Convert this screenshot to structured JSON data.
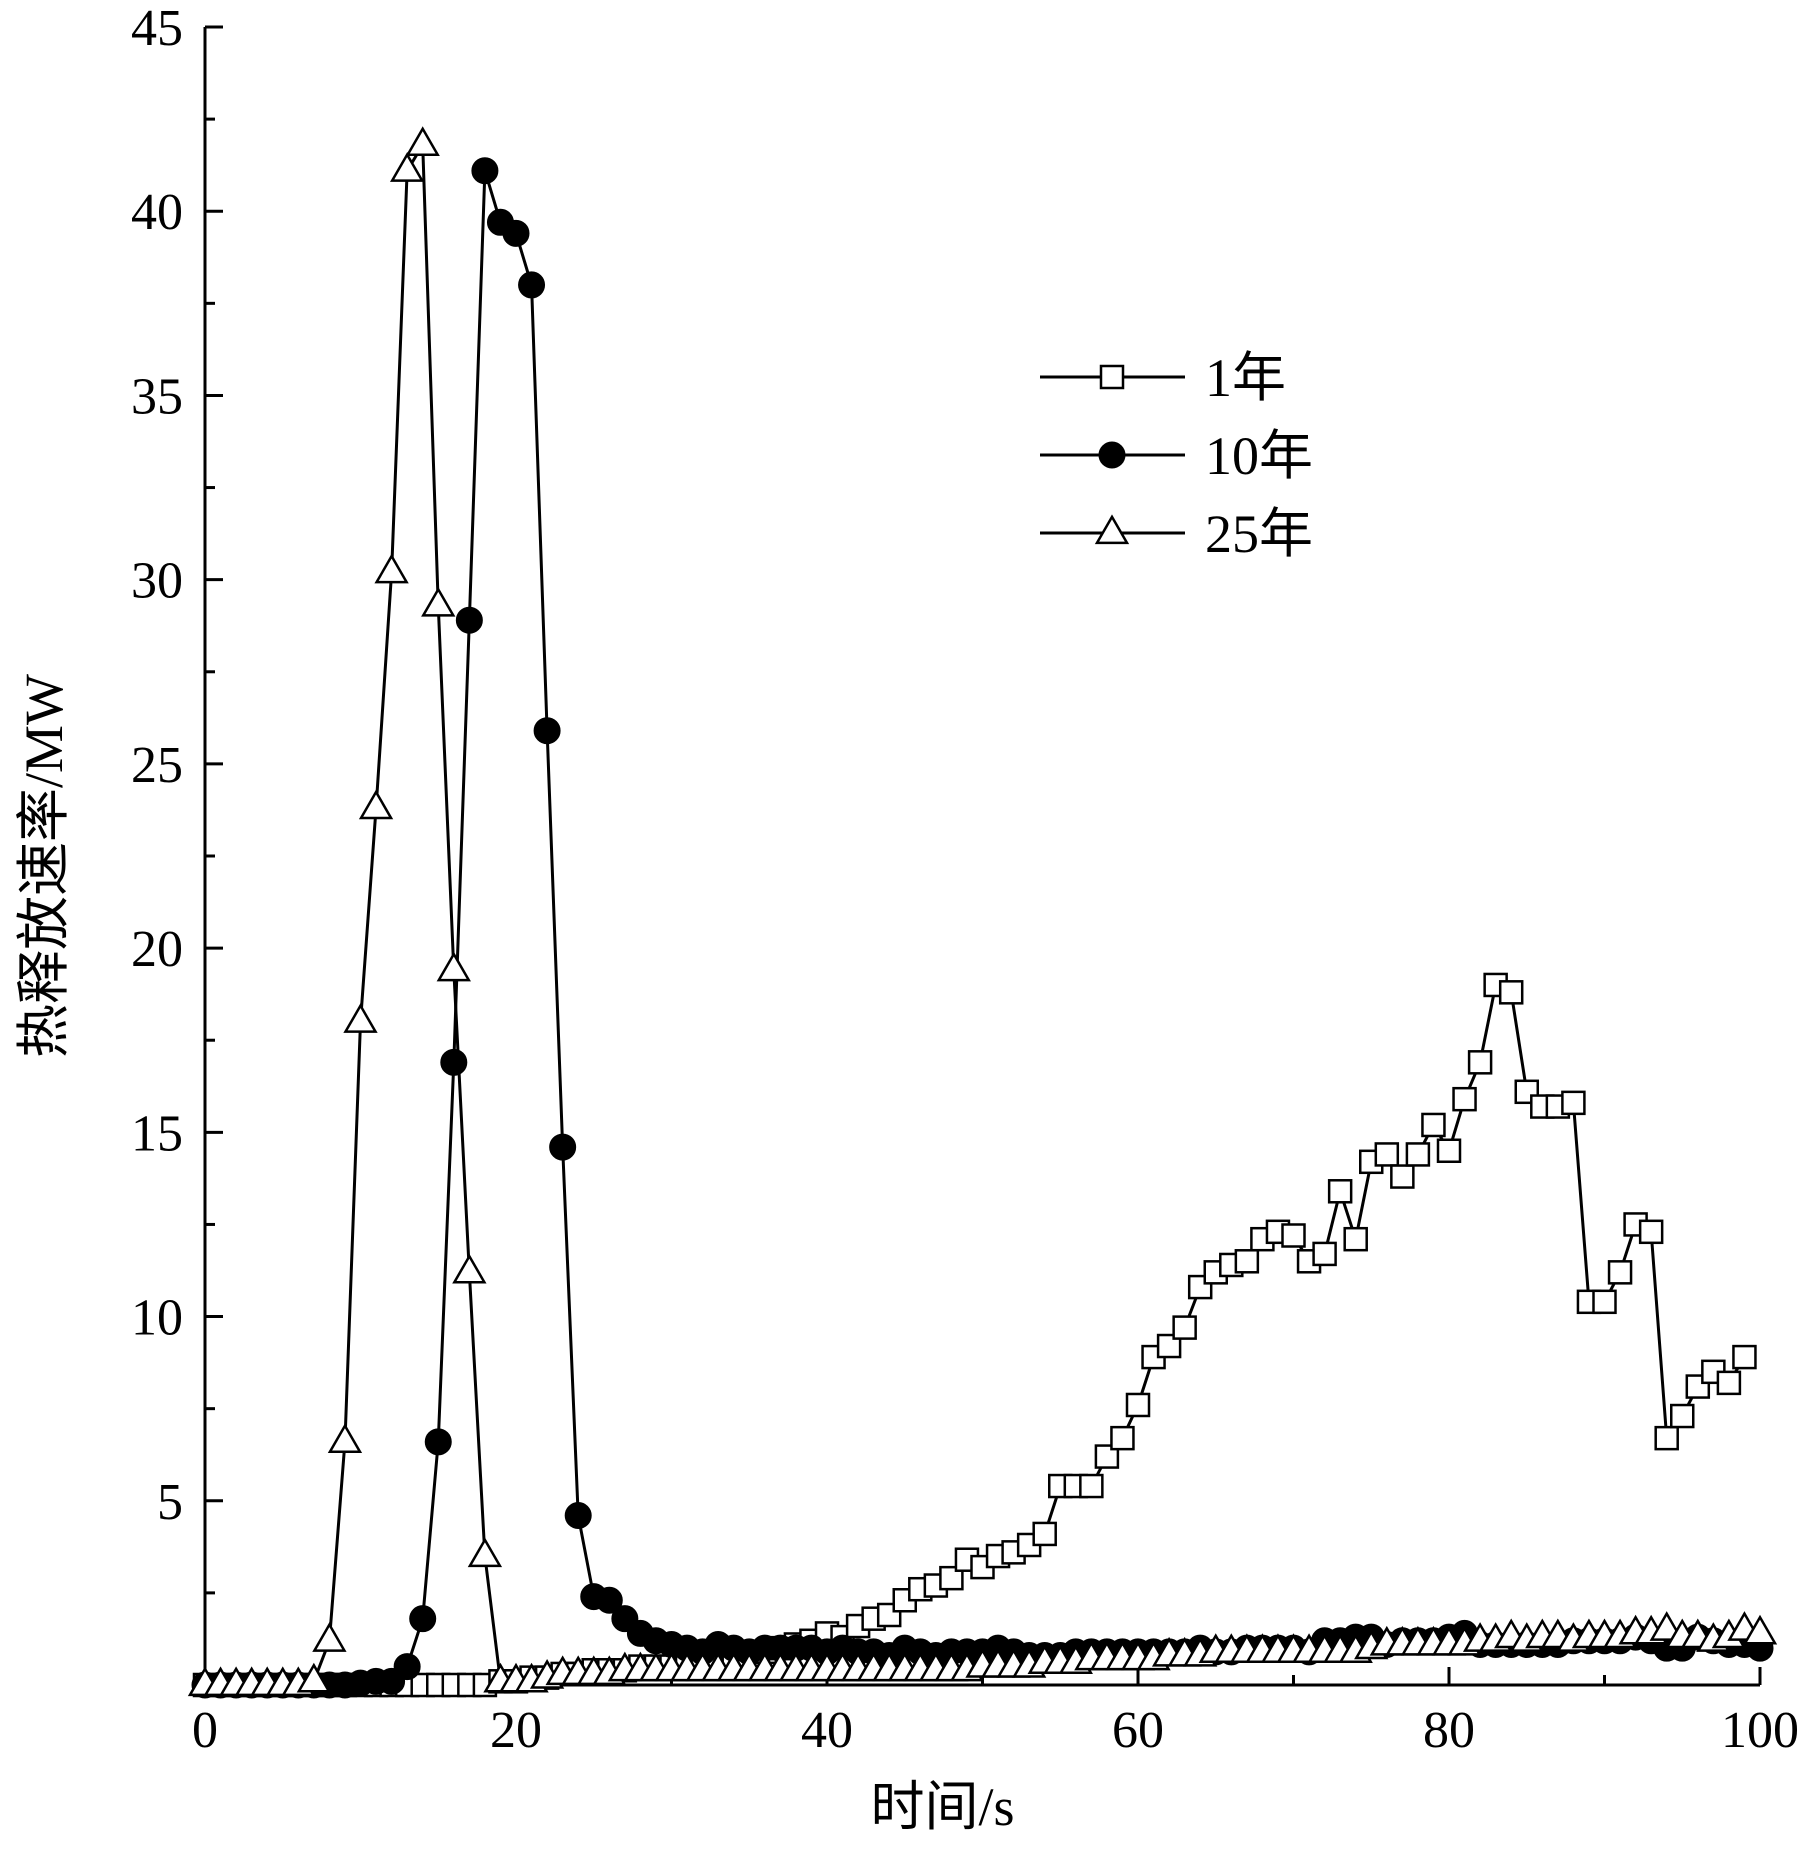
{
  "chart_data": {
    "type": "line",
    "title": "",
    "xlabel": "时间/s",
    "ylabel": "热释放速率/MW",
    "xlim": [
      0,
      100
    ],
    "ylim": [
      0,
      45
    ],
    "xticks": [
      0,
      20,
      40,
      60,
      80,
      100
    ],
    "yticks": [
      5,
      10,
      15,
      20,
      25,
      30,
      35,
      40,
      45
    ],
    "legend_position": "upper-center-right",
    "series": [
      {
        "name": "1年",
        "marker": "open-square",
        "x": [
          0,
          1,
          2,
          3,
          4,
          5,
          6,
          7,
          8,
          9,
          10,
          11,
          12,
          13,
          14,
          15,
          16,
          17,
          18,
          19,
          20,
          21,
          22,
          23,
          24,
          25,
          26,
          27,
          28,
          29,
          30,
          31,
          32,
          33,
          34,
          35,
          36,
          37,
          38,
          39,
          40,
          41,
          42,
          43,
          44,
          45,
          46,
          47,
          48,
          49,
          50,
          51,
          52,
          53,
          54,
          55,
          56,
          57,
          58,
          59,
          60,
          61,
          62,
          63,
          64,
          65,
          66,
          67,
          68,
          69,
          70,
          71,
          72,
          73,
          74,
          75,
          76,
          77,
          78,
          79,
          80,
          81,
          82,
          83,
          84,
          85,
          86,
          87,
          88,
          89,
          90,
          91,
          92,
          93,
          94,
          95,
          96,
          97,
          98,
          99,
          100
        ],
        "y": [
          0,
          0,
          0,
          0,
          0,
          0,
          0,
          0,
          0,
          0,
          0,
          0,
          0,
          0,
          0,
          0,
          0,
          0,
          0,
          0.1,
          0.1,
          0.2,
          0.2,
          0.3,
          0.3,
          0.4,
          0.4,
          0.4,
          0.5,
          0.5,
          0.5,
          0.6,
          0.6,
          0.7,
          0.8,
          0.8,
          0.9,
          1.0,
          1.1,
          1.2,
          1.4,
          1.3,
          1.6,
          1.8,
          1.9,
          2.3,
          2.6,
          2.7,
          2.9,
          3.4,
          3.2,
          3.5,
          3.6,
          3.8,
          4.1,
          5.4,
          5.4,
          5.4,
          6.2,
          6.7,
          7.6,
          8.9,
          9.2,
          9.7,
          10.8,
          11.2,
          11.4,
          11.5,
          12.1,
          12.3,
          12.2,
          11.5,
          11.7,
          13.4,
          12.1,
          14.2,
          14.4,
          13.8,
          14.4,
          15.2,
          14.5,
          15.9,
          16.9,
          19.0,
          18.8,
          16.1,
          15.7,
          15.7,
          15.8,
          10.4,
          10.4,
          11.2,
          12.5,
          12.3,
          6.7,
          7.3,
          8.1,
          8.5,
          8.2,
          8.9,
          null
        ]
      },
      {
        "name": "10年",
        "marker": "filled-circle",
        "x": [
          0,
          1,
          2,
          3,
          4,
          5,
          6,
          7,
          8,
          9,
          10,
          11,
          12,
          13,
          14,
          15,
          16,
          17,
          18,
          19,
          20,
          21,
          22,
          23,
          24,
          25,
          26,
          27,
          28,
          29,
          30,
          31,
          32,
          33,
          34,
          35,
          36,
          37,
          38,
          39,
          40,
          41,
          42,
          43,
          44,
          45,
          46,
          47,
          48,
          49,
          50,
          51,
          52,
          53,
          54,
          55,
          56,
          57,
          58,
          59,
          60,
          61,
          62,
          63,
          64,
          65,
          66,
          67,
          68,
          69,
          70,
          71,
          72,
          73,
          74,
          75,
          76,
          77,
          78,
          79,
          80,
          81,
          82,
          83,
          84,
          85,
          86,
          87,
          88,
          89,
          90,
          91,
          92,
          93,
          94,
          95,
          96,
          97,
          98,
          99,
          100
        ],
        "y": [
          0,
          0,
          0,
          0,
          0,
          0,
          0,
          0,
          0,
          0,
          0.05,
          0.1,
          0.1,
          0.5,
          1.8,
          6.6,
          16.9,
          28.9,
          41.1,
          39.7,
          39.4,
          38.0,
          25.9,
          14.6,
          4.6,
          2.4,
          2.3,
          1.8,
          1.4,
          1.2,
          1.1,
          1.0,
          0.9,
          1.1,
          1.0,
          0.9,
          1.0,
          1.0,
          1.0,
          1.0,
          0.9,
          1.0,
          0.9,
          0.9,
          0.8,
          1.0,
          0.9,
          0.8,
          0.9,
          0.9,
          0.9,
          1.0,
          0.9,
          0.8,
          0.8,
          0.8,
          0.9,
          0.9,
          0.9,
          0.9,
          0.9,
          0.9,
          0.9,
          0.9,
          1.0,
          0.9,
          0.9,
          1.0,
          1.0,
          1.0,
          1.0,
          0.9,
          1.2,
          1.2,
          1.3,
          1.3,
          1.1,
          1.2,
          1.2,
          1.2,
          1.3,
          1.4,
          1.1,
          1.1,
          1.1,
          1.1,
          1.1,
          1.1,
          1.2,
          1.2,
          1.2,
          1.2,
          1.3,
          1.2,
          1.0,
          1.0,
          1.3,
          1.2,
          1.1,
          1.1,
          1.0
        ]
      },
      {
        "name": "25年",
        "marker": "open-triangle",
        "x": [
          0,
          1,
          2,
          3,
          4,
          5,
          6,
          7,
          8,
          9,
          10,
          11,
          12,
          13,
          14,
          15,
          16,
          17,
          18,
          19,
          20,
          21,
          22,
          23,
          24,
          25,
          26,
          27,
          28,
          29,
          30,
          31,
          32,
          33,
          34,
          35,
          36,
          37,
          38,
          39,
          40,
          41,
          42,
          43,
          44,
          45,
          46,
          47,
          48,
          49,
          50,
          51,
          52,
          53,
          54,
          55,
          56,
          57,
          58,
          59,
          60,
          61,
          62,
          63,
          64,
          65,
          66,
          67,
          68,
          69,
          70,
          71,
          72,
          73,
          74,
          75,
          76,
          77,
          78,
          79,
          80,
          81,
          82,
          83,
          84,
          85,
          86,
          87,
          88,
          89,
          90,
          91,
          92,
          93,
          94,
          95,
          96,
          97,
          98,
          99,
          100
        ],
        "y": [
          0,
          0,
          0,
          0,
          0,
          0,
          0,
          0.1,
          1.2,
          6.6,
          18.0,
          23.8,
          30.2,
          41.1,
          41.8,
          29.3,
          19.4,
          11.2,
          3.5,
          0.1,
          0.1,
          0.1,
          0.2,
          0.3,
          0.3,
          0.3,
          0.3,
          0.4,
          0.4,
          0.4,
          0.4,
          0.4,
          0.4,
          0.4,
          0.4,
          0.4,
          0.4,
          0.4,
          0.4,
          0.4,
          0.4,
          0.4,
          0.4,
          0.4,
          0.4,
          0.4,
          0.4,
          0.4,
          0.4,
          0.4,
          0.5,
          0.5,
          0.5,
          0.5,
          0.6,
          0.6,
          0.6,
          0.7,
          0.7,
          0.7,
          0.7,
          0.7,
          0.8,
          0.8,
          0.8,
          0.9,
          0.9,
          0.9,
          0.9,
          0.9,
          0.9,
          0.9,
          0.9,
          0.9,
          0.9,
          1.0,
          1.1,
          1.1,
          1.1,
          1.1,
          1.1,
          1.1,
          1.2,
          1.2,
          1.3,
          1.2,
          1.3,
          1.3,
          1.2,
          1.3,
          1.3,
          1.3,
          1.4,
          1.4,
          1.5,
          1.3,
          1.3,
          1.2,
          1.3,
          1.5,
          1.4
        ]
      }
    ]
  }
}
